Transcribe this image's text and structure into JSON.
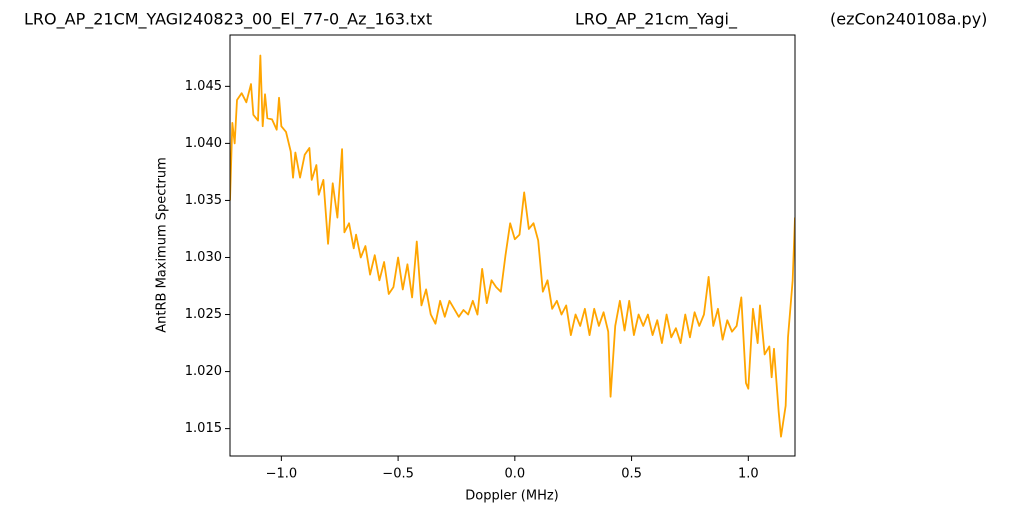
{
  "chart_data": {
    "type": "line",
    "title": [
      "LRO_AP_21CM_YAGI240823_00_El_77-0_Az_163.txt",
      "LRO_AP_21cm_Yagi_",
      "(ezCon240108a.py)"
    ],
    "x_label": "Doppler (MHz)",
    "y_label": "AntRB Maximum Spectrum",
    "xlim": [
      -1.22,
      1.2
    ],
    "ylim": [
      1.0126,
      1.0495
    ],
    "xticks": [
      {
        "value": -1.0,
        "label": "−1.0"
      },
      {
        "value": -0.5,
        "label": "−0.5"
      },
      {
        "value": 0.0,
        "label": "0.0"
      },
      0.5,
      {
        "value": 1.0,
        "label": "1.0"
      }
    ],
    "yticks": [
      1.015,
      {
        "value": 1.02,
        "label": "1.020"
      },
      1.025,
      {
        "value": 1.03,
        "label": "1.030"
      },
      1.035,
      {
        "value": 1.04,
        "label": "1.040"
      },
      1.045
    ],
    "series": [
      {
        "name": "AntRB",
        "color": "#ffa500",
        "x": [
          -1.22,
          -1.21,
          -1.2,
          -1.19,
          -1.17,
          -1.15,
          -1.13,
          -1.12,
          -1.1,
          -1.09,
          -1.08,
          -1.07,
          -1.06,
          -1.04,
          -1.02,
          -1.01,
          -1.0,
          -0.98,
          -0.96,
          -0.95,
          -0.94,
          -0.92,
          -0.9,
          -0.88,
          -0.87,
          -0.85,
          -0.84,
          -0.82,
          -0.8,
          -0.78,
          -0.76,
          -0.74,
          -0.73,
          -0.71,
          -0.69,
          -0.68,
          -0.66,
          -0.64,
          -0.62,
          -0.6,
          -0.58,
          -0.56,
          -0.54,
          -0.52,
          -0.5,
          -0.48,
          -0.46,
          -0.44,
          -0.42,
          -0.4,
          -0.38,
          -0.36,
          -0.34,
          -0.32,
          -0.3,
          -0.28,
          -0.26,
          -0.24,
          -0.22,
          -0.2,
          -0.18,
          -0.16,
          -0.14,
          -0.12,
          -0.1,
          -0.08,
          -0.06,
          -0.04,
          -0.02,
          0.0,
          0.02,
          0.04,
          0.06,
          0.08,
          0.1,
          0.12,
          0.14,
          0.16,
          0.18,
          0.2,
          0.22,
          0.24,
          0.26,
          0.28,
          0.3,
          0.32,
          0.34,
          0.36,
          0.38,
          0.4,
          0.41,
          0.43,
          0.45,
          0.47,
          0.49,
          0.51,
          0.53,
          0.55,
          0.57,
          0.59,
          0.61,
          0.63,
          0.65,
          0.67,
          0.69,
          0.71,
          0.73,
          0.75,
          0.77,
          0.79,
          0.81,
          0.83,
          0.85,
          0.87,
          0.89,
          0.91,
          0.93,
          0.95,
          0.97,
          0.99,
          1.0,
          1.02,
          1.04,
          1.05,
          1.07,
          1.09,
          1.1,
          1.11,
          1.13,
          1.14,
          1.16,
          1.17,
          1.19,
          1.2
        ],
        "values": [
          1.035,
          1.0418,
          1.04,
          1.0438,
          1.0444,
          1.0436,
          1.0452,
          1.0425,
          1.042,
          1.0477,
          1.0415,
          1.0443,
          1.0422,
          1.0421,
          1.0412,
          1.044,
          1.0415,
          1.041,
          1.0393,
          1.037,
          1.0392,
          1.037,
          1.039,
          1.0396,
          1.0368,
          1.0381,
          1.0355,
          1.0368,
          1.0312,
          1.0365,
          1.0335,
          1.0395,
          1.0322,
          1.033,
          1.0308,
          1.032,
          1.03,
          1.031,
          1.0285,
          1.0302,
          1.028,
          1.0296,
          1.0268,
          1.0274,
          1.03,
          1.0272,
          1.0294,
          1.0265,
          1.0314,
          1.0258,
          1.0272,
          1.025,
          1.0242,
          1.0262,
          1.0248,
          1.0262,
          1.0255,
          1.0248,
          1.0254,
          1.025,
          1.0262,
          1.025,
          1.029,
          1.026,
          1.028,
          1.0274,
          1.027,
          1.0302,
          1.033,
          1.0316,
          1.032,
          1.0357,
          1.0325,
          1.033,
          1.0315,
          1.027,
          1.028,
          1.0255,
          1.0262,
          1.025,
          1.0258,
          1.0232,
          1.025,
          1.024,
          1.0255,
          1.0232,
          1.0255,
          1.024,
          1.0252,
          1.0235,
          1.0178,
          1.024,
          1.0262,
          1.0236,
          1.0262,
          1.0232,
          1.025,
          1.024,
          1.025,
          1.0232,
          1.0245,
          1.0225,
          1.025,
          1.023,
          1.0238,
          1.0225,
          1.025,
          1.023,
          1.0252,
          1.024,
          1.025,
          1.0283,
          1.024,
          1.0255,
          1.0228,
          1.0245,
          1.0235,
          1.024,
          1.0265,
          1.019,
          1.0185,
          1.0255,
          1.0225,
          1.0258,
          1.0215,
          1.0222,
          1.0195,
          1.022,
          1.0165,
          1.0143,
          1.017,
          1.023,
          1.028,
          1.0335
        ]
      }
    ]
  }
}
